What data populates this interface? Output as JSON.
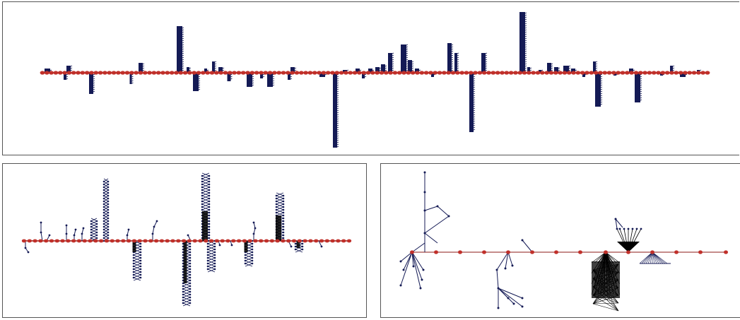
{
  "figure": {
    "panels": [
      {
        "id": "top",
        "description_type": "spine-with-bar-clusters"
      },
      {
        "id": "bottom-left",
        "description_type": "spine-with-branching-trees"
      },
      {
        "id": "bottom-right",
        "description_type": "spine-with-fan-trees"
      }
    ],
    "colors": {
      "spine_node": "#c0302a",
      "spine_line": "#8b1a14",
      "branch": "#141a55",
      "edge": "#000000",
      "frame": "#555555"
    },
    "spine_node_counts": {
      "top": 150,
      "bottom_left": 60,
      "bottom_right": 14
    }
  }
}
